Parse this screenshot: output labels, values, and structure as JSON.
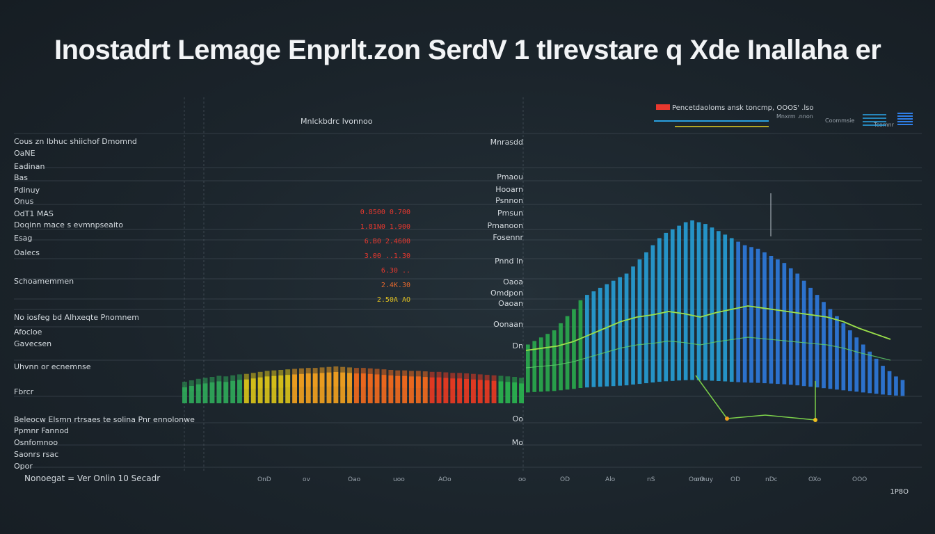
{
  "title": "Inostadrt Lemage Enprlt.zon SerdV 1 tIrevstare q Xde Inallaha er",
  "colors": {
    "background": "#1b242b",
    "grid": "#56616b",
    "warm": [
      "#2fa85a",
      "#d8c21a",
      "#f0a020",
      "#f06a1e",
      "#e83a22"
    ],
    "cool": [
      "#2ab34f",
      "#27a6e0",
      "#2f7fe8"
    ],
    "trend": "#9be04a"
  },
  "chart_data": {
    "type": "bar",
    "title": "Inostadrt Lemage Enprlt.zon SerdV 1 tIrevstare q Xde Inallaha er",
    "subtitle": "Mnlckbdrc lvonnoo",
    "left_labels": [
      "Cous zn lbhuc shiichof Dmomnd",
      "OaNE",
      "Eadinan",
      "Bas",
      "Pdinuy",
      "Onus",
      "OdT1 MAS",
      "Doqinn  mace s evmnpseaito",
      "Esag",
      "Oalecs",
      "Schoamemmen",
      "No iosfeg  bd Alhxeqte Pnomnem",
      "Afocloe",
      "Gavecsen",
      "Uhvnn or ecnemnse",
      "Fbrcr",
      "Beleocw Elsmn rtrsaes te solina Pnr ennolonwe",
      "Ppmnr  Fannod",
      "Osnfomnoo",
      "Saonrs  rsac",
      "Opor"
    ],
    "mid_labels": [
      "Mnrasdd",
      "Pmaou",
      "Hooarn",
      "Psnnon",
      "Pmsun",
      "Pmanoon",
      "Fosennr",
      "Pnnd ln",
      "Oaoa",
      "Omdpon",
      "Oaoan",
      "Oonaan",
      "Dn",
      "Oo",
      "Mo"
    ],
    "red_values": [
      "0.8500 0.700",
      "1.81N0 1.900",
      "6.B0 2.4600",
      "3.00 ..1.30",
      "6.30 ..",
      "2.4K.30",
      "2.50A  AO"
    ],
    "legend": {
      "label": "Pencetdaoloms ansk toncmp, OOOS' .lso",
      "items": [
        "Mnxrm .nnon",
        "Coommsie",
        "Tcomnr"
      ]
    },
    "x_ticks": [
      "Nonoegat  =  Ver  Onlin  10 Secadr",
      "OnD",
      "ov",
      "Oao",
      "uoo",
      "AOo",
      "oo",
      "OD",
      "Alo",
      "nS",
      "oO",
      "Oonnuy",
      "OD",
      "nDc",
      "OXo",
      "OOO"
    ],
    "x_label_right": "1P8O",
    "categories_count": 140,
    "warm_heights": [
      0.32,
      0.35,
      0.38,
      0.4,
      0.42,
      0.44,
      0.43,
      0.45,
      0.47,
      0.48,
      0.5,
      0.52,
      0.54,
      0.55,
      0.56,
      0.57,
      0.58,
      0.59,
      0.6,
      0.6,
      0.61,
      0.62,
      0.63,
      0.62,
      0.61,
      0.6,
      0.6,
      0.59,
      0.58,
      0.57,
      0.56,
      0.55,
      0.55,
      0.54,
      0.54,
      0.53,
      0.52,
      0.52,
      0.51,
      0.5,
      0.5,
      0.49,
      0.48,
      0.47,
      0.46,
      0.45,
      0.44,
      0.43,
      0.42,
      0.4
    ],
    "cool_heights": [
      0.3,
      0.32,
      0.34,
      0.36,
      0.38,
      0.42,
      0.46,
      0.5,
      0.55,
      0.58,
      0.6,
      0.62,
      0.64,
      0.66,
      0.68,
      0.7,
      0.74,
      0.78,
      0.82,
      0.86,
      0.9,
      0.93,
      0.95,
      0.97,
      0.99,
      1.0,
      0.99,
      0.98,
      0.96,
      0.94,
      0.92,
      0.9,
      0.88,
      0.86,
      0.85,
      0.84,
      0.82,
      0.8,
      0.78,
      0.76,
      0.73,
      0.7,
      0.66,
      0.62,
      0.58,
      0.54,
      0.5,
      0.46,
      0.42,
      0.38,
      0.34,
      0.3,
      0.26,
      0.22,
      0.18,
      0.15,
      0.12,
      0.1
    ],
    "trend_values": [
      0.1,
      0.12,
      0.14,
      0.18,
      0.24,
      0.3,
      0.36,
      0.4,
      0.42,
      0.45,
      0.43,
      0.4,
      0.44,
      0.47,
      0.5,
      0.48,
      0.46,
      0.44,
      0.42,
      0.4,
      0.36,
      0.3,
      0.25,
      0.2
    ],
    "ylim": [
      0,
      1
    ]
  }
}
